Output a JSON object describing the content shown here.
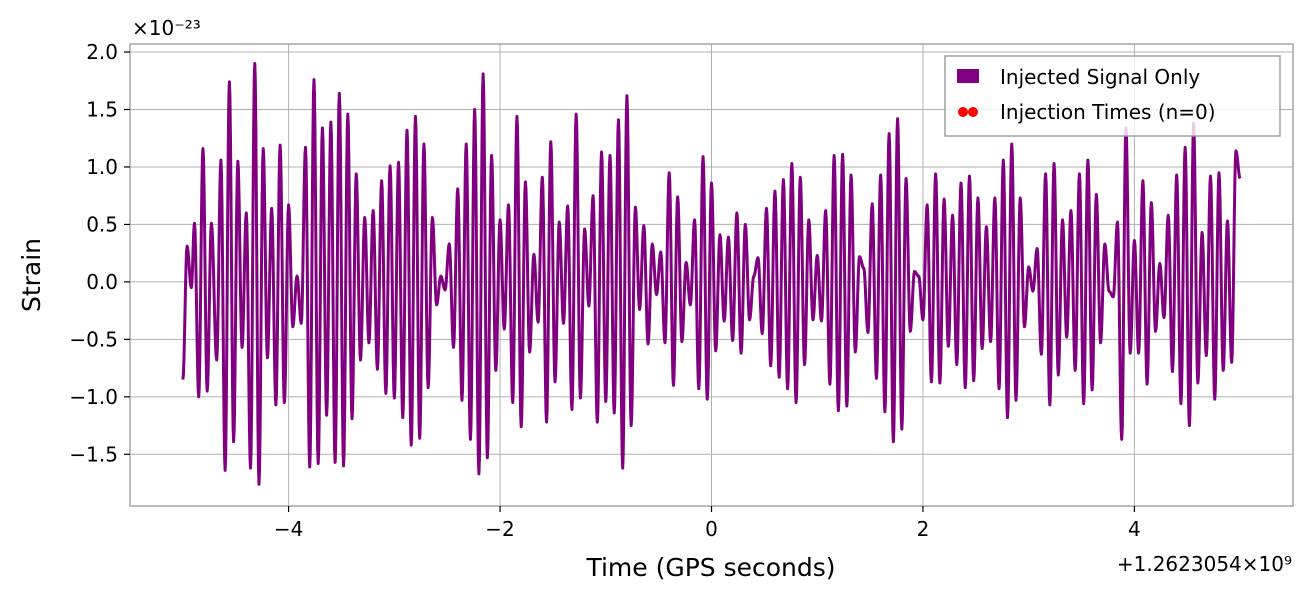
{
  "chart_data": {
    "type": "line",
    "xlabel": "Time (GPS seconds)",
    "ylabel": "Strain",
    "x_offset_text": "+1.2623054×10⁹",
    "y_multiplier_text": "×10⁻²³",
    "xlim": [
      -5.5,
      5.5
    ],
    "ylim": [
      -1.95,
      2.07
    ],
    "x_ticks": [
      -4,
      -2,
      0,
      2,
      4
    ],
    "x_tick_labels": [
      "−4",
      "−2",
      "0",
      "2",
      "4"
    ],
    "y_ticks": [
      -1.5,
      -1.0,
      -0.5,
      0.0,
      0.5,
      1.0,
      1.5,
      2.0
    ],
    "y_tick_labels": [
      "−1.5",
      "−1.0",
      "−0.5",
      "0.0",
      "0.5",
      "1.0",
      "1.5",
      "2.0"
    ],
    "grid": true,
    "legend_position": "top-right",
    "legend": [
      {
        "label": "Injected Signal Only",
        "color": "#800080",
        "marker": "square"
      },
      {
        "label": "Injection Times (n=0)",
        "color": "#ff0000",
        "marker": "dots"
      }
    ],
    "series": [
      {
        "name": "Injected Signal Only",
        "color": "#800080",
        "x_range": [
          -5.0,
          5.0
        ],
        "peaks": [
          [
            -5.0,
            -0.85
          ],
          [
            -4.96,
            0.31
          ],
          [
            -4.92,
            -0.05
          ],
          [
            -4.89,
            0.51
          ],
          [
            -4.85,
            -1.0
          ],
          [
            -4.81,
            1.16
          ],
          [
            -4.77,
            -0.95
          ],
          [
            -4.73,
            0.51
          ],
          [
            -4.68,
            -0.68
          ],
          [
            -4.64,
            1.06
          ],
          [
            -4.6,
            -1.64
          ],
          [
            -4.56,
            1.74
          ],
          [
            -4.52,
            -1.39
          ],
          [
            -4.48,
            1.05
          ],
          [
            -4.44,
            -0.57
          ],
          [
            -4.4,
            0.6
          ],
          [
            -4.36,
            -1.62
          ],
          [
            -4.32,
            1.9
          ],
          [
            -4.28,
            -1.76
          ],
          [
            -4.24,
            1.16
          ],
          [
            -4.2,
            -0.66
          ],
          [
            -4.16,
            0.64
          ],
          [
            -4.12,
            -1.07
          ],
          [
            -4.08,
            1.19
          ],
          [
            -4.04,
            -1.05
          ],
          [
            -4.0,
            0.67
          ],
          [
            -3.96,
            -0.39
          ],
          [
            -3.92,
            0.05
          ],
          [
            -3.88,
            -0.36
          ],
          [
            -3.84,
            1.17
          ],
          [
            -3.8,
            -1.61
          ],
          [
            -3.76,
            1.76
          ],
          [
            -3.72,
            -1.58
          ],
          [
            -3.68,
            1.34
          ],
          [
            -3.64,
            -1.16
          ],
          [
            -3.6,
            1.39
          ],
          [
            -3.56,
            -1.57
          ],
          [
            -3.52,
            1.64
          ],
          [
            -3.48,
            -1.6
          ],
          [
            -3.44,
            1.46
          ],
          [
            -3.4,
            -1.19
          ],
          [
            -3.36,
            0.94
          ],
          [
            -3.32,
            -0.68
          ],
          [
            -3.28,
            0.56
          ],
          [
            -3.24,
            -0.53
          ],
          [
            -3.2,
            0.62
          ],
          [
            -3.16,
            -0.76
          ],
          [
            -3.12,
            0.88
          ],
          [
            -3.08,
            -0.97
          ],
          [
            -3.04,
            1.01
          ],
          [
            -3.0,
            -1.01
          ],
          [
            -2.96,
            1.04
          ],
          [
            -2.92,
            -1.18
          ],
          [
            -2.88,
            1.32
          ],
          [
            -2.84,
            -1.42
          ],
          [
            -2.8,
            1.44
          ],
          [
            -2.76,
            -1.36
          ],
          [
            -2.72,
            1.2
          ],
          [
            -2.68,
            -0.92
          ],
          [
            -2.64,
            0.56
          ],
          [
            -2.6,
            -0.2
          ],
          [
            -2.56,
            0.05
          ],
          [
            -2.52,
            -0.07
          ],
          [
            -2.48,
            0.33
          ],
          [
            -2.44,
            -0.57
          ],
          [
            -2.4,
            0.81
          ],
          [
            -2.36,
            -1.03
          ],
          [
            -2.32,
            1.2
          ],
          [
            -2.28,
            -1.37
          ],
          [
            -2.24,
            1.5
          ],
          [
            -2.2,
            -1.67
          ],
          [
            -2.16,
            1.81
          ],
          [
            -2.12,
            -1.53
          ],
          [
            -2.08,
            1.1
          ],
          [
            -2.04,
            -0.77
          ],
          [
            -2.0,
            0.54
          ],
          [
            -1.96,
            -0.41
          ],
          [
            -1.92,
            0.67
          ],
          [
            -1.88,
            -1.05
          ],
          [
            -1.84,
            1.44
          ],
          [
            -1.8,
            -1.26
          ],
          [
            -1.76,
            0.87
          ],
          [
            -1.72,
            -0.61
          ],
          [
            -1.68,
            0.24
          ],
          [
            -1.64,
            -0.35
          ],
          [
            -1.6,
            0.91
          ],
          [
            -1.56,
            -1.22
          ],
          [
            -1.52,
            1.22
          ],
          [
            -1.48,
            -0.87
          ],
          [
            -1.44,
            0.52
          ],
          [
            -1.4,
            -0.36
          ],
          [
            -1.36,
            0.66
          ],
          [
            -1.32,
            -1.11
          ],
          [
            -1.28,
            1.46
          ],
          [
            -1.24,
            -1.01
          ],
          [
            -1.2,
            0.46
          ],
          [
            -1.16,
            -0.21
          ],
          [
            -1.12,
            0.75
          ],
          [
            -1.08,
            -1.22
          ],
          [
            -1.04,
            1.13
          ],
          [
            -1.0,
            -1.04
          ],
          [
            -0.96,
            1.1
          ],
          [
            -0.92,
            -1.14
          ],
          [
            -0.88,
            1.41
          ],
          [
            -0.84,
            -1.62
          ],
          [
            -0.8,
            1.62
          ],
          [
            -0.76,
            -1.25
          ],
          [
            -0.72,
            0.65
          ],
          [
            -0.68,
            -0.24
          ],
          [
            -0.64,
            0.49
          ],
          [
            -0.6,
            -0.54
          ],
          [
            -0.56,
            0.33
          ],
          [
            -0.52,
            -0.11
          ],
          [
            -0.48,
            0.26
          ],
          [
            -0.44,
            -0.53
          ],
          [
            -0.4,
            0.95
          ],
          [
            -0.36,
            -0.9
          ],
          [
            -0.32,
            0.74
          ],
          [
            -0.28,
            -0.52
          ],
          [
            -0.24,
            0.17
          ],
          [
            -0.2,
            -0.2
          ],
          [
            -0.16,
            0.54
          ],
          [
            -0.12,
            -0.93
          ],
          [
            -0.08,
            1.09
          ],
          [
            -0.04,
            -1.02
          ],
          [
            0.0,
            0.86
          ],
          [
            0.04,
            -0.6
          ],
          [
            0.08,
            0.41
          ],
          [
            0.12,
            -0.34
          ],
          [
            0.16,
            0.39
          ],
          [
            0.2,
            -0.51
          ],
          [
            0.24,
            0.6
          ],
          [
            0.28,
            -0.62
          ],
          [
            0.32,
            0.5
          ],
          [
            0.36,
            -0.33
          ],
          [
            0.4,
            0.05
          ],
          [
            0.44,
            0.21
          ],
          [
            0.48,
            -0.45
          ],
          [
            0.52,
            0.64
          ],
          [
            0.56,
            -0.73
          ],
          [
            0.6,
            0.79
          ],
          [
            0.64,
            -0.83
          ],
          [
            0.68,
            0.89
          ],
          [
            0.72,
            -0.93
          ],
          [
            0.76,
            1.03
          ],
          [
            0.8,
            -1.05
          ],
          [
            0.84,
            0.91
          ],
          [
            0.88,
            -0.72
          ],
          [
            0.92,
            0.54
          ],
          [
            0.96,
            -0.33
          ],
          [
            1.0,
            0.23
          ],
          [
            1.04,
            -0.34
          ],
          [
            1.08,
            0.62
          ],
          [
            1.12,
            -0.89
          ],
          [
            1.16,
            1.1
          ],
          [
            1.2,
            -1.12
          ],
          [
            1.24,
            1.11
          ],
          [
            1.28,
            -1.08
          ],
          [
            1.32,
            0.93
          ],
          [
            1.36,
            -0.61
          ],
          [
            1.4,
            0.22
          ],
          [
            1.44,
            0.12
          ],
          [
            1.48,
            -0.44
          ],
          [
            1.52,
            0.68
          ],
          [
            1.56,
            -0.84
          ],
          [
            1.6,
            0.93
          ],
          [
            1.64,
            -1.13
          ],
          [
            1.68,
            1.29
          ],
          [
            1.72,
            -1.39
          ],
          [
            1.76,
            1.42
          ],
          [
            1.8,
            -1.28
          ],
          [
            1.84,
            0.9
          ],
          [
            1.88,
            -0.43
          ],
          [
            1.92,
            0.09
          ],
          [
            1.96,
            0.05
          ],
          [
            2.0,
            -0.33
          ],
          [
            2.04,
            0.67
          ],
          [
            2.08,
            -0.87
          ],
          [
            2.12,
            0.94
          ],
          [
            2.16,
            -0.88
          ],
          [
            2.2,
            0.72
          ],
          [
            2.24,
            -0.56
          ],
          [
            2.28,
            0.58
          ],
          [
            2.32,
            -0.72
          ],
          [
            2.36,
            0.86
          ],
          [
            2.4,
            -0.92
          ],
          [
            2.44,
            0.92
          ],
          [
            2.48,
            -0.86
          ],
          [
            2.52,
            0.73
          ],
          [
            2.56,
            -0.58
          ],
          [
            2.6,
            0.48
          ],
          [
            2.64,
            -0.52
          ],
          [
            2.68,
            0.73
          ],
          [
            2.72,
            -0.93
          ],
          [
            2.76,
            1.06
          ],
          [
            2.8,
            -1.18
          ],
          [
            2.84,
            1.2
          ],
          [
            2.88,
            -1.03
          ],
          [
            2.92,
            0.73
          ],
          [
            2.96,
            -0.39
          ],
          [
            3.0,
            0.13
          ],
          [
            3.04,
            -0.08
          ],
          [
            3.08,
            0.29
          ],
          [
            3.12,
            -0.63
          ],
          [
            3.16,
            0.94
          ],
          [
            3.2,
            -1.07
          ],
          [
            3.24,
            1.03
          ],
          [
            3.28,
            -0.81
          ],
          [
            3.32,
            0.54
          ],
          [
            3.36,
            -0.48
          ],
          [
            3.4,
            0.62
          ],
          [
            3.44,
            -0.77
          ],
          [
            3.48,
            0.94
          ],
          [
            3.52,
            -1.06
          ],
          [
            3.56,
            1.06
          ],
          [
            3.6,
            -0.94
          ],
          [
            3.64,
            0.76
          ],
          [
            3.68,
            -0.53
          ],
          [
            3.72,
            0.33
          ],
          [
            3.76,
            -0.08
          ],
          [
            3.8,
            -0.13
          ],
          [
            3.84,
            0.52
          ],
          [
            3.88,
            -1.37
          ],
          [
            3.92,
            1.34
          ],
          [
            3.96,
            -0.62
          ],
          [
            4.0,
            0.36
          ],
          [
            4.04,
            -0.62
          ],
          [
            4.08,
            0.88
          ],
          [
            4.12,
            -0.89
          ],
          [
            4.16,
            0.69
          ],
          [
            4.2,
            -0.43
          ],
          [
            4.24,
            0.16
          ],
          [
            4.28,
            -0.31
          ],
          [
            4.32,
            0.58
          ],
          [
            4.36,
            -0.78
          ],
          [
            4.4,
            0.93
          ],
          [
            4.44,
            -1.06
          ],
          [
            4.48,
            1.17
          ],
          [
            4.52,
            -1.25
          ],
          [
            4.56,
            1.38
          ],
          [
            4.6,
            -0.88
          ],
          [
            4.64,
            0.43
          ],
          [
            4.68,
            -0.64
          ],
          [
            4.72,
            0.92
          ],
          [
            4.76,
            -1.02
          ],
          [
            4.8,
            0.95
          ],
          [
            4.84,
            -0.77
          ],
          [
            4.88,
            0.53
          ],
          [
            4.92,
            -0.7
          ],
          [
            4.96,
            1.14
          ],
          [
            5.0,
            0.9
          ]
        ]
      },
      {
        "name": "Injection Times (n=0)",
        "color": "#ff0000",
        "points": []
      }
    ]
  }
}
